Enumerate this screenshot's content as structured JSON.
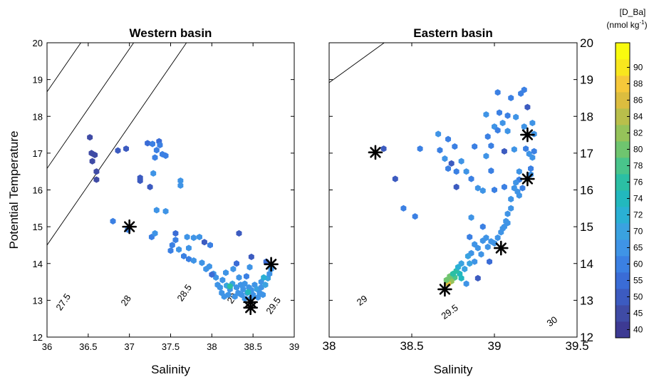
{
  "colorbar": {
    "title_line1": "[D_Ba]",
    "title_line2": "(nmol kg",
    "title_sup": "-1",
    "title_close": ")",
    "levels": [
      40,
      45,
      50,
      55,
      60,
      65,
      70,
      72,
      74,
      76,
      78,
      80,
      82,
      84,
      86,
      88,
      90
    ],
    "colors": [
      "#3d3a93",
      "#3f4ba5",
      "#3c5bc0",
      "#3a6cd6",
      "#3b80e3",
      "#3f94e6",
      "#3aa2e0",
      "#2ab0d4",
      "#22b8be",
      "#2bbfa4",
      "#49c48b",
      "#6fc56f",
      "#95c35a",
      "#b9bf4b",
      "#dcbd3f",
      "#f6c83a",
      "#f8e61e",
      "#f9fb0e"
    ]
  },
  "chart_data": [
    {
      "type": "scatter",
      "title": "Western basin",
      "xlabel": "Salinity",
      "ylabel": "Potential Temperature",
      "xlim": [
        36,
        39
      ],
      "ylim": [
        12,
        20
      ],
      "xticks": [
        "36",
        "36.5",
        "37",
        "37.5",
        "38",
        "38.5",
        "39"
      ],
      "yticks": [
        "12",
        "13",
        "14",
        "15",
        "16",
        "17",
        "18",
        "19",
        "20"
      ],
      "isopycnals": [
        {
          "label": "27.5",
          "sigma": 27.5
        },
        {
          "label": "28",
          "sigma": 28
        },
        {
          "label": "28.5",
          "sigma": 28.5
        },
        {
          "label": "29",
          "sigma": 29
        },
        {
          "label": "29.5",
          "sigma": 29.5
        }
      ],
      "extra_isopycnals": [
        26.5,
        27
      ],
      "endmembers": [
        [
          37.0,
          15.0
        ],
        [
          38.47,
          12.95
        ],
        [
          38.72,
          13.98
        ],
        [
          38.47,
          12.8
        ]
      ],
      "points": [
        [
          36.52,
          17.43,
          42
        ],
        [
          36.54,
          17.0,
          42
        ],
        [
          36.55,
          16.78,
          42
        ],
        [
          36.58,
          16.95,
          43
        ],
        [
          36.6,
          16.5,
          43
        ],
        [
          36.6,
          16.28,
          44
        ],
        [
          36.86,
          17.07,
          45
        ],
        [
          36.96,
          17.12,
          46
        ],
        [
          37.13,
          16.33,
          47
        ],
        [
          37.13,
          16.25,
          45
        ],
        [
          37.22,
          17.27,
          50
        ],
        [
          37.25,
          16.08,
          48
        ],
        [
          37.28,
          17.25,
          55
        ],
        [
          37.31,
          16.88,
          56
        ],
        [
          37.33,
          17.08,
          58
        ],
        [
          37.36,
          17.32,
          52
        ],
        [
          37.37,
          17.22,
          57
        ],
        [
          37.4,
          16.97,
          56
        ],
        [
          37.44,
          16.93,
          55
        ],
        [
          37.29,
          16.45,
          60
        ],
        [
          37.62,
          16.25,
          62
        ],
        [
          37.62,
          16.12,
          60
        ],
        [
          36.8,
          15.15,
          55
        ],
        [
          36.98,
          14.92,
          58
        ],
        [
          37.27,
          14.72,
          58
        ],
        [
          37.31,
          14.82,
          60
        ],
        [
          37.33,
          15.45,
          62
        ],
        [
          37.44,
          15.42,
          60
        ],
        [
          37.5,
          14.35,
          56
        ],
        [
          37.52,
          14.5,
          58
        ],
        [
          37.56,
          14.64,
          57
        ],
        [
          37.56,
          14.82,
          50
        ],
        [
          37.6,
          14.38,
          60
        ],
        [
          37.66,
          14.2,
          58
        ],
        [
          37.7,
          14.72,
          60
        ],
        [
          37.72,
          14.42,
          60
        ],
        [
          37.72,
          14.12,
          58
        ],
        [
          37.78,
          14.7,
          60
        ],
        [
          37.78,
          14.08,
          60
        ],
        [
          37.85,
          14.72,
          62
        ],
        [
          37.88,
          14.02,
          60
        ],
        [
          37.93,
          13.85,
          62
        ],
        [
          37.97,
          13.92,
          60
        ],
        [
          37.98,
          14.5,
          58
        ],
        [
          38.02,
          13.72,
          62
        ],
        [
          38.05,
          13.62,
          63
        ],
        [
          38.07,
          13.42,
          60
        ],
        [
          38.1,
          13.35,
          62
        ],
        [
          38.12,
          13.2,
          63
        ],
        [
          38.13,
          13.55,
          62
        ],
        [
          38.15,
          13.1,
          62
        ],
        [
          38.17,
          13.75,
          62
        ],
        [
          38.18,
          13.4,
          65
        ],
        [
          38.2,
          13.15,
          62
        ],
        [
          38.22,
          13.3,
          64
        ],
        [
          38.25,
          13.45,
          66
        ],
        [
          38.26,
          13.85,
          60
        ],
        [
          38.28,
          13.1,
          63
        ],
        [
          38.3,
          13.35,
          62
        ],
        [
          38.32,
          13.2,
          64
        ],
        [
          38.33,
          13.62,
          63
        ],
        [
          38.35,
          13.42,
          64
        ],
        [
          38.36,
          13.15,
          62
        ],
        [
          38.38,
          13.3,
          60
        ],
        [
          38.4,
          13.05,
          63
        ],
        [
          38.4,
          13.45,
          62
        ],
        [
          38.42,
          13.65,
          58
        ],
        [
          38.43,
          13.2,
          62
        ],
        [
          38.45,
          13.35,
          64
        ],
        [
          38.46,
          13.9,
          60
        ],
        [
          38.47,
          13.05,
          62
        ],
        [
          38.48,
          13.28,
          63
        ],
        [
          38.5,
          13.15,
          62
        ],
        [
          38.52,
          13.42,
          64
        ],
        [
          38.55,
          13.3,
          66
        ],
        [
          38.56,
          13.08,
          62
        ],
        [
          38.58,
          13.2,
          63
        ],
        [
          38.6,
          13.5,
          62
        ],
        [
          38.6,
          13.35,
          60
        ],
        [
          38.62,
          13.15,
          62
        ],
        [
          38.65,
          13.42,
          65
        ],
        [
          38.68,
          13.6,
          66
        ],
        [
          38.7,
          13.72,
          64
        ],
        [
          38.72,
          13.85,
          62
        ],
        [
          38.22,
          13.38,
          74
        ],
        [
          38.44,
          13.22,
          72
        ],
        [
          38.63,
          13.62,
          70
        ],
        [
          38.66,
          14.05,
          50
        ],
        [
          37.91,
          14.58,
          45
        ],
        [
          38.33,
          14.82,
          48
        ],
        [
          38.48,
          14.18,
          46
        ],
        [
          38.3,
          14.0,
          52
        ],
        [
          38.0,
          13.7,
          50
        ]
      ]
    },
    {
      "type": "scatter",
      "title": "Eastern basin",
      "xlabel": "Salinity",
      "ylabel": "",
      "xlim": [
        38,
        39.5
      ],
      "ylim": [
        12,
        20
      ],
      "xticks": [
        "38",
        "38.5",
        "39",
        "39.5"
      ],
      "yticks": [
        "12",
        "13",
        "14",
        "15",
        "16",
        "17",
        "18",
        "19",
        "20"
      ],
      "isopycnals": [
        {
          "label": "29",
          "sigma": 29
        },
        {
          "label": "29.5",
          "sigma": 29.5
        },
        {
          "label": "30",
          "sigma": 30
        }
      ],
      "extra_isopycnals": [
        28,
        28.5
      ],
      "endmembers": [
        [
          38.28,
          17.02
        ],
        [
          39.2,
          17.5
        ],
        [
          39.2,
          16.3
        ],
        [
          39.04,
          14.42
        ],
        [
          38.7,
          13.3
        ]
      ],
      "points": [
        [
          38.33,
          17.12,
          48
        ],
        [
          38.4,
          16.3,
          46
        ],
        [
          38.45,
          15.5,
          55
        ],
        [
          38.52,
          15.28,
          58
        ],
        [
          38.55,
          17.12,
          58
        ],
        [
          38.66,
          17.52,
          60
        ],
        [
          38.67,
          17.08,
          55
        ],
        [
          38.7,
          16.85,
          60
        ],
        [
          38.72,
          17.38,
          56
        ],
        [
          38.72,
          16.58,
          58
        ],
        [
          38.74,
          16.72,
          46
        ],
        [
          38.76,
          17.18,
          55
        ],
        [
          38.77,
          16.5,
          58
        ],
        [
          38.77,
          16.08,
          48
        ],
        [
          38.8,
          16.78,
          62
        ],
        [
          38.83,
          16.5,
          60
        ],
        [
          38.86,
          16.3,
          58
        ],
        [
          38.88,
          17.18,
          58
        ],
        [
          38.9,
          16.05,
          60
        ],
        [
          38.93,
          15.98,
          60
        ],
        [
          38.95,
          16.92,
          60
        ],
        [
          38.96,
          17.45,
          58
        ],
        [
          38.98,
          17.2,
          55
        ],
        [
          38.98,
          16.52,
          56
        ],
        [
          39.0,
          16.0,
          58
        ],
        [
          39.0,
          17.72,
          60
        ],
        [
          39.02,
          17.62,
          58
        ],
        [
          39.03,
          18.1,
          55
        ],
        [
          39.05,
          17.82,
          62
        ],
        [
          39.06,
          17.05,
          45
        ],
        [
          39.06,
          16.08,
          58
        ],
        [
          39.08,
          18.02,
          58
        ],
        [
          39.08,
          17.6,
          60
        ],
        [
          39.1,
          18.5,
          58
        ],
        [
          39.12,
          17.1,
          62
        ],
        [
          39.13,
          17.98,
          60
        ],
        [
          39.15,
          16.28,
          58
        ],
        [
          39.15,
          15.85,
          62
        ],
        [
          39.16,
          18.62,
          58
        ],
        [
          39.18,
          18.72,
          56
        ],
        [
          39.18,
          17.72,
          60
        ],
        [
          39.19,
          17.12,
          58
        ],
        [
          39.2,
          18.25,
          45
        ],
        [
          39.21,
          16.98,
          60
        ],
        [
          39.22,
          16.58,
          58
        ],
        [
          39.22,
          16.42,
          62
        ],
        [
          39.23,
          16.88,
          60
        ],
        [
          39.24,
          17.05,
          56
        ],
        [
          39.24,
          17.52,
          60
        ],
        [
          39.23,
          17.82,
          60
        ],
        [
          39.02,
          18.65,
          58
        ],
        [
          38.95,
          18.05,
          60
        ],
        [
          39.15,
          16.5,
          60
        ],
        [
          39.13,
          16.2,
          62
        ],
        [
          39.12,
          16.05,
          60
        ],
        [
          39.1,
          15.75,
          62
        ],
        [
          39.1,
          15.5,
          60
        ],
        [
          39.08,
          15.35,
          62
        ],
        [
          39.07,
          15.15,
          60
        ],
        [
          39.06,
          15.0,
          62
        ],
        [
          39.04,
          14.85,
          60
        ],
        [
          39.02,
          14.7,
          62
        ],
        [
          39.0,
          14.55,
          63
        ],
        [
          38.98,
          14.6,
          62
        ],
        [
          38.96,
          14.45,
          60
        ],
        [
          38.95,
          14.7,
          62
        ],
        [
          38.93,
          14.62,
          60
        ],
        [
          38.92,
          14.25,
          63
        ],
        [
          38.9,
          14.42,
          62
        ],
        [
          38.88,
          14.05,
          64
        ],
        [
          38.86,
          14.28,
          62
        ],
        [
          38.85,
          14.0,
          65
        ],
        [
          38.85,
          14.72,
          58
        ],
        [
          38.82,
          13.85,
          66
        ],
        [
          38.8,
          14.0,
          68
        ],
        [
          38.79,
          13.72,
          72
        ],
        [
          38.77,
          13.8,
          74
        ],
        [
          38.76,
          13.62,
          76
        ],
        [
          38.74,
          13.52,
          80
        ],
        [
          38.73,
          13.65,
          78
        ],
        [
          38.72,
          13.45,
          84
        ],
        [
          38.71,
          13.55,
          78
        ],
        [
          38.75,
          13.72,
          74
        ],
        [
          38.78,
          13.9,
          70
        ],
        [
          38.8,
          13.6,
          72
        ],
        [
          38.83,
          13.45,
          62
        ],
        [
          38.9,
          13.6,
          48
        ],
        [
          38.97,
          14.05,
          50
        ],
        [
          38.93,
          15.0,
          58
        ],
        [
          38.86,
          15.25,
          60
        ],
        [
          39.14,
          15.95,
          60
        ],
        [
          39.17,
          16.05,
          58
        ],
        [
          39.05,
          14.95,
          62
        ],
        [
          39.08,
          15.1,
          64
        ],
        [
          38.88,
          14.52,
          64
        ],
        [
          38.84,
          14.2,
          66
        ]
      ]
    }
  ]
}
